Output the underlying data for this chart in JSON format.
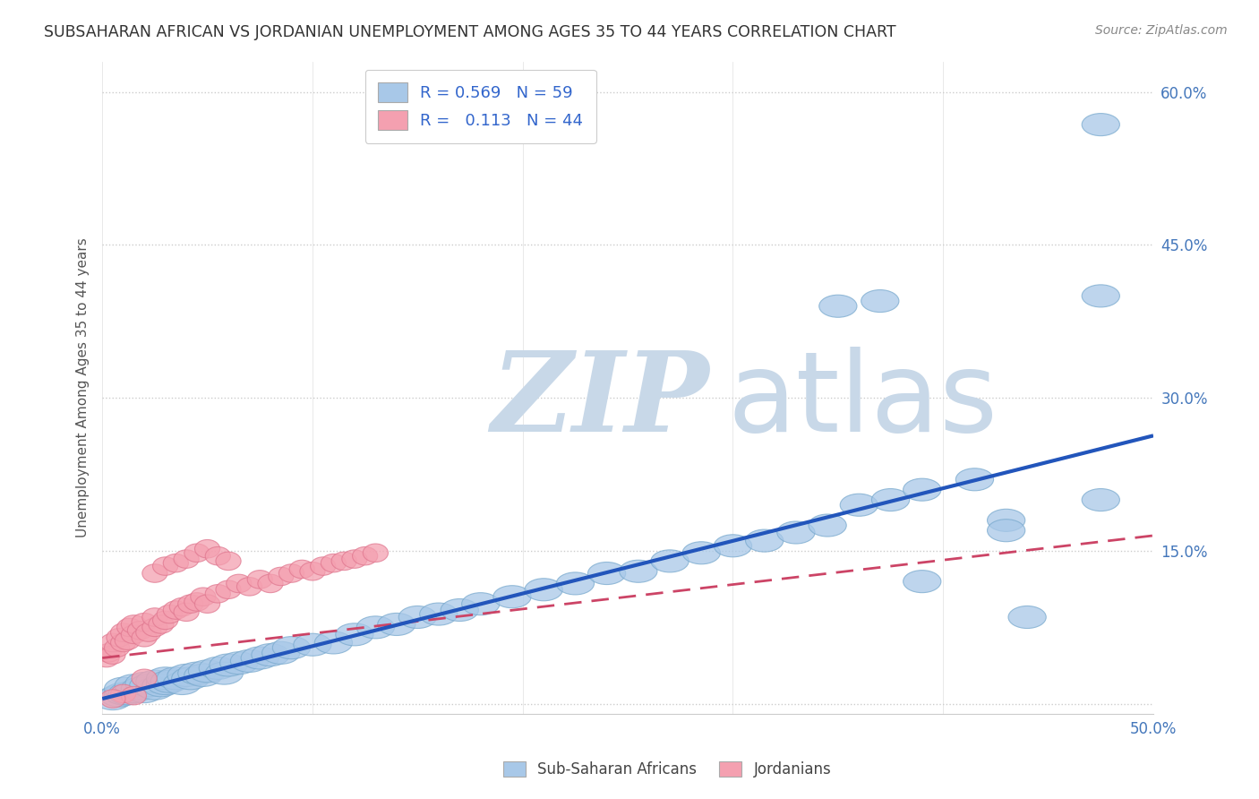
{
  "title": "SUBSAHARAN AFRICAN VS JORDANIAN UNEMPLOYMENT AMONG AGES 35 TO 44 YEARS CORRELATION CHART",
  "source": "Source: ZipAtlas.com",
  "ylabel": "Unemployment Among Ages 35 to 44 years",
  "xlim": [
    0,
    0.5
  ],
  "ylim": [
    -0.01,
    0.63
  ],
  "ytick_vals": [
    0.0,
    0.15,
    0.3,
    0.45,
    0.6
  ],
  "ytick_labels": [
    "",
    "15.0%",
    "30.0%",
    "45.0%",
    "60.0%"
  ],
  "xtick_vals": [
    0.0,
    0.1,
    0.2,
    0.3,
    0.4,
    0.5
  ],
  "xtick_labels": [
    "0.0%",
    "",
    "",
    "",
    "",
    "50.0%"
  ],
  "blue_R": 0.569,
  "blue_N": 59,
  "pink_R": 0.113,
  "pink_N": 44,
  "blue_color": "#a8c8e8",
  "pink_color": "#f4a0b0",
  "blue_edge": "#7aaace",
  "pink_edge": "#e07890",
  "trend_blue": "#2255bb",
  "trend_pink": "#cc4466",
  "watermark_zip": "ZIP",
  "watermark_atlas": "atlas",
  "watermark_color_zip": "#c8d8e8",
  "watermark_color_atlas": "#c8d8e8",
  "legend_label_blue": "Sub-Saharan Africans",
  "legend_label_pink": "Jordanians",
  "blue_trend_x0": 0.0,
  "blue_trend_y0": 0.005,
  "blue_trend_x1": 0.5,
  "blue_trend_y1": 0.263,
  "pink_trend_x0": 0.0,
  "pink_trend_y0": 0.045,
  "pink_trend_x1": 0.5,
  "pink_trend_y1": 0.165,
  "blue_x": [
    0.005,
    0.008,
    0.01,
    0.01,
    0.012,
    0.015,
    0.015,
    0.018,
    0.02,
    0.02,
    0.022,
    0.025,
    0.025,
    0.028,
    0.03,
    0.03,
    0.032,
    0.035,
    0.038,
    0.04,
    0.042,
    0.045,
    0.048,
    0.05,
    0.055,
    0.058,
    0.06,
    0.065,
    0.07,
    0.075,
    0.08,
    0.085,
    0.09,
    0.1,
    0.11,
    0.12,
    0.13,
    0.14,
    0.15,
    0.16,
    0.17,
    0.18,
    0.195,
    0.21,
    0.225,
    0.24,
    0.255,
    0.27,
    0.285,
    0.3,
    0.315,
    0.33,
    0.345,
    0.36,
    0.375,
    0.39,
    0.415,
    0.43,
    0.475
  ],
  "blue_y": [
    0.005,
    0.008,
    0.01,
    0.015,
    0.01,
    0.012,
    0.018,
    0.015,
    0.012,
    0.02,
    0.018,
    0.015,
    0.022,
    0.018,
    0.02,
    0.025,
    0.022,
    0.025,
    0.02,
    0.028,
    0.025,
    0.03,
    0.028,
    0.032,
    0.035,
    0.03,
    0.038,
    0.04,
    0.042,
    0.045,
    0.048,
    0.05,
    0.055,
    0.058,
    0.06,
    0.068,
    0.075,
    0.078,
    0.085,
    0.088,
    0.092,
    0.098,
    0.105,
    0.112,
    0.118,
    0.128,
    0.13,
    0.14,
    0.148,
    0.155,
    0.16,
    0.168,
    0.175,
    0.195,
    0.2,
    0.21,
    0.22,
    0.18,
    0.2
  ],
  "blue_outliers_x": [
    0.37,
    0.475,
    0.475,
    0.35,
    0.43,
    0.39,
    0.44
  ],
  "blue_outliers_y": [
    0.395,
    0.568,
    0.4,
    0.39,
    0.17,
    0.12,
    0.085
  ],
  "pink_x": [
    0.002,
    0.003,
    0.005,
    0.005,
    0.007,
    0.008,
    0.01,
    0.01,
    0.012,
    0.013,
    0.015,
    0.015,
    0.018,
    0.02,
    0.02,
    0.022,
    0.025,
    0.025,
    0.028,
    0.03,
    0.032,
    0.035,
    0.038,
    0.04,
    0.042,
    0.045,
    0.048,
    0.05,
    0.055,
    0.06,
    0.065,
    0.07,
    0.075,
    0.08,
    0.085,
    0.09,
    0.095,
    0.1,
    0.105,
    0.11,
    0.115,
    0.12,
    0.125,
    0.13
  ],
  "pink_y": [
    0.045,
    0.05,
    0.048,
    0.06,
    0.055,
    0.065,
    0.06,
    0.07,
    0.062,
    0.075,
    0.068,
    0.078,
    0.072,
    0.065,
    0.08,
    0.07,
    0.075,
    0.085,
    0.078,
    0.082,
    0.088,
    0.092,
    0.095,
    0.09,
    0.098,
    0.1,
    0.105,
    0.098,
    0.108,
    0.112,
    0.118,
    0.115,
    0.122,
    0.118,
    0.125,
    0.128,
    0.132,
    0.13,
    0.135,
    0.138,
    0.14,
    0.142,
    0.145,
    0.148
  ],
  "pink_outliers_x": [
    0.025,
    0.03,
    0.035,
    0.04,
    0.045,
    0.05,
    0.055,
    0.06,
    0.02,
    0.01,
    0.015,
    0.005
  ],
  "pink_outliers_y": [
    0.128,
    0.135,
    0.138,
    0.142,
    0.148,
    0.152,
    0.145,
    0.14,
    0.025,
    0.01,
    0.008,
    0.005
  ]
}
